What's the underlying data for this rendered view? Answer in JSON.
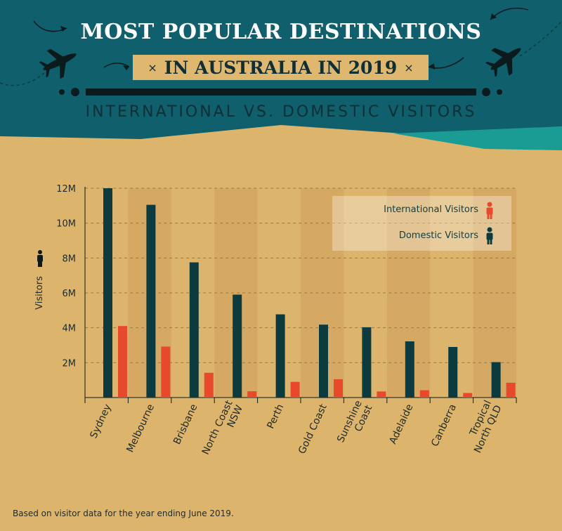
{
  "header": {
    "title": "MOST POPULAR DESTINATIONS",
    "title_line2": "IN AUSTRALIA IN 2019",
    "subtitle": "INTERNATIONAL VS. DOMESTIC VISITORS",
    "x_mark": "×"
  },
  "footnote": "Based on visitor data for the year ending June 2019.",
  "colors": {
    "header_bg": "#0f5f6c",
    "dark_teal": "#0b3b3f",
    "accent_teal": "#1a9c95",
    "background": "#ddb46c",
    "international": "#e8482c",
    "domestic": "#0b3b3f"
  },
  "icons": [
    "airplane-icon",
    "arrow-icon",
    "person-icon"
  ],
  "legend": {
    "international": "International Visitors",
    "domestic": "Domestic Visitors",
    "placement": "top-right"
  },
  "chart_data": {
    "type": "bar",
    "ylabel": "Visitors",
    "ylim": [
      0,
      12
    ],
    "yticks": [
      "2M",
      "4M",
      "6M",
      "8M",
      "10M",
      "12M"
    ],
    "grid": true,
    "categories": [
      "Sydney",
      "Melbourne",
      "Brisbane",
      "North Coast NSW",
      "Perth",
      "Gold Coast",
      "Sunshine Coast",
      "Adelaide",
      "Canberra",
      "Tropical North QLD"
    ],
    "category_lines": [
      [
        "Sydney"
      ],
      [
        "Melbourne"
      ],
      [
        "Brisbane"
      ],
      [
        "North Coast",
        "NSW"
      ],
      [
        "Perth"
      ],
      [
        "Gold Coast"
      ],
      [
        "Sunshine",
        "Coast"
      ],
      [
        "Adelaide"
      ],
      [
        "Canberra"
      ],
      [
        "Tropical",
        "North QLD"
      ]
    ],
    "series": [
      {
        "name": "Domestic Visitors",
        "values": [
          12.0,
          11.05,
          7.75,
          5.9,
          4.77,
          4.18,
          4.03,
          3.22,
          2.9,
          2.03
        ]
      },
      {
        "name": "International Visitors",
        "values": [
          4.1,
          2.92,
          1.42,
          0.36,
          0.9,
          1.05,
          0.35,
          0.42,
          0.26,
          0.85
        ]
      }
    ]
  }
}
